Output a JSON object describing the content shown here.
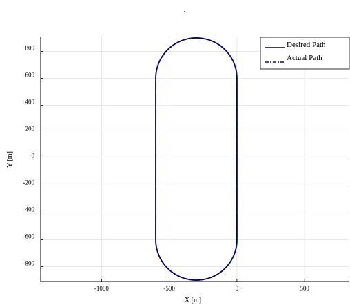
{
  "chart_data": {
    "type": "line",
    "title": ".",
    "xlabel": "X [m]",
    "ylabel": "Y [m]",
    "xlim": [
      -1450,
      830
    ],
    "ylim": [
      -910,
      910
    ],
    "xticks": [
      -1000,
      -500,
      0,
      500
    ],
    "yticks": [
      -800,
      -600,
      -400,
      -200,
      0,
      200,
      400,
      600,
      800
    ],
    "grid": true,
    "legend_position": "top-right",
    "shape": {
      "kind": "stadium",
      "straight_x_left": -600,
      "straight_x_right": 0,
      "straight_y_bottom": -600,
      "straight_y_top": 600,
      "turn_radius": 300
    },
    "series": [
      {
        "name": "Desired Path",
        "color": "#000000",
        "style": "solid"
      },
      {
        "name": "Actual Path",
        "color": "#0000cc",
        "style": "dash-dot"
      }
    ]
  }
}
